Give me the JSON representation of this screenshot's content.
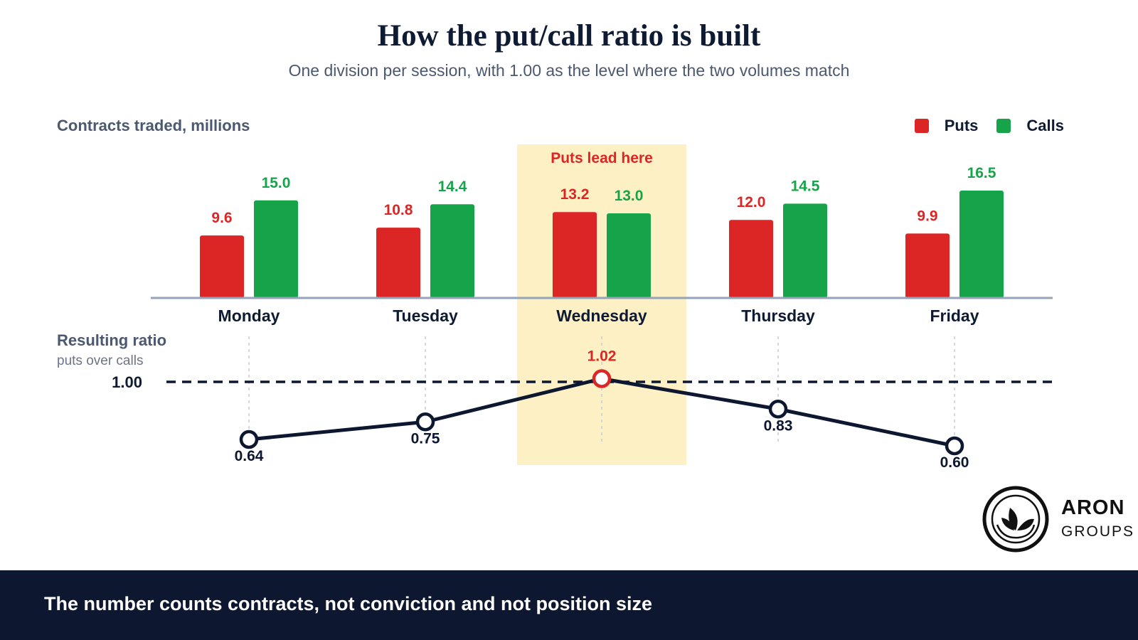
{
  "title": "How the put/call ratio is built",
  "subtitle": "One division per session, with 1.00 as the level where the two volumes match",
  "colors": {
    "puts": "#dc2626",
    "calls": "#16a34a",
    "ratio_line": "#0d1730",
    "highlight": "#fdf0c4",
    "axis": "#94a3b8"
  },
  "footer": {
    "text": "The number counts contracts, not conviction and not position size"
  },
  "logo": {
    "word": "ARON",
    "sub": "GROUPS",
    "icon": "leaf-circle-icon"
  },
  "chart_data": [
    {
      "type": "bar",
      "ylabel": "Contracts traded, millions",
      "categories": [
        "Monday",
        "Tuesday",
        "Wednesday",
        "Thursday",
        "Friday"
      ],
      "series": [
        {
          "name": "Puts",
          "values": [
            9.6,
            10.8,
            13.2,
            12.0,
            9.9
          ]
        },
        {
          "name": "Calls",
          "values": [
            15.0,
            14.4,
            13.0,
            14.5,
            16.5
          ]
        }
      ],
      "legend": "top-right",
      "highlight": {
        "category": "Wednesday",
        "label": "Puts lead here"
      }
    },
    {
      "type": "line",
      "title": "Resulting ratio",
      "subtitle": "puts over calls",
      "categories": [
        "Monday",
        "Tuesday",
        "Wednesday",
        "Thursday",
        "Friday"
      ],
      "values": [
        0.64,
        0.75,
        1.02,
        0.83,
        0.6
      ],
      "value_labels": [
        "0.64",
        "0.75",
        "1.02",
        "0.83",
        "0.60"
      ],
      "reference": {
        "value": 1.0,
        "label": "1.00"
      }
    }
  ]
}
